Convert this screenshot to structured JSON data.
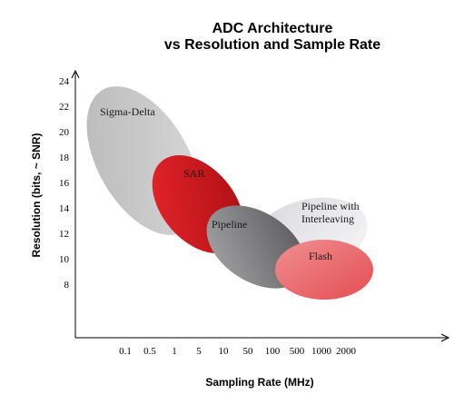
{
  "chart_data": {
    "type": "scatter",
    "title": [
      "ADC Architecture",
      "vs Resolution and Sample Rate"
    ],
    "xlabel": "Sampling Rate (MHz)",
    "ylabel": "Resolution (bits, ~ SNR)",
    "x_ticks": [
      "0.1",
      "0.5",
      "1",
      "5",
      "10",
      "50",
      "100",
      "500",
      "1000",
      "2000"
    ],
    "y_ticks": [
      24,
      22,
      20,
      18,
      16,
      14,
      12,
      10,
      8
    ],
    "ylim": [
      4,
      25
    ],
    "grid": false,
    "regions": [
      {
        "name": "Sigma-Delta",
        "x_min": "0.1",
        "x_max": "10",
        "y_min": 11,
        "y_max": 25,
        "color": "#c4c4c4"
      },
      {
        "name": "SAR",
        "x_min": "1",
        "x_max": "50",
        "y_min": 8.5,
        "y_max": 18,
        "color": "#d9141d"
      },
      {
        "name": "Pipeline",
        "x_min": "10",
        "x_max": "500",
        "y_min": 6.5,
        "y_max": 14,
        "color": "#7d7d80"
      },
      {
        "name": "Pipeline with Interleaving",
        "x_min": "100",
        "x_max": "2000",
        "y_min": 8.5,
        "y_max": 14,
        "color": "#e6e6e8"
      },
      {
        "name": "Flash",
        "x_min": "500",
        "x_max": "2000",
        "y_min": 6.5,
        "y_max": 11,
        "color": "#ea6266"
      }
    ]
  }
}
